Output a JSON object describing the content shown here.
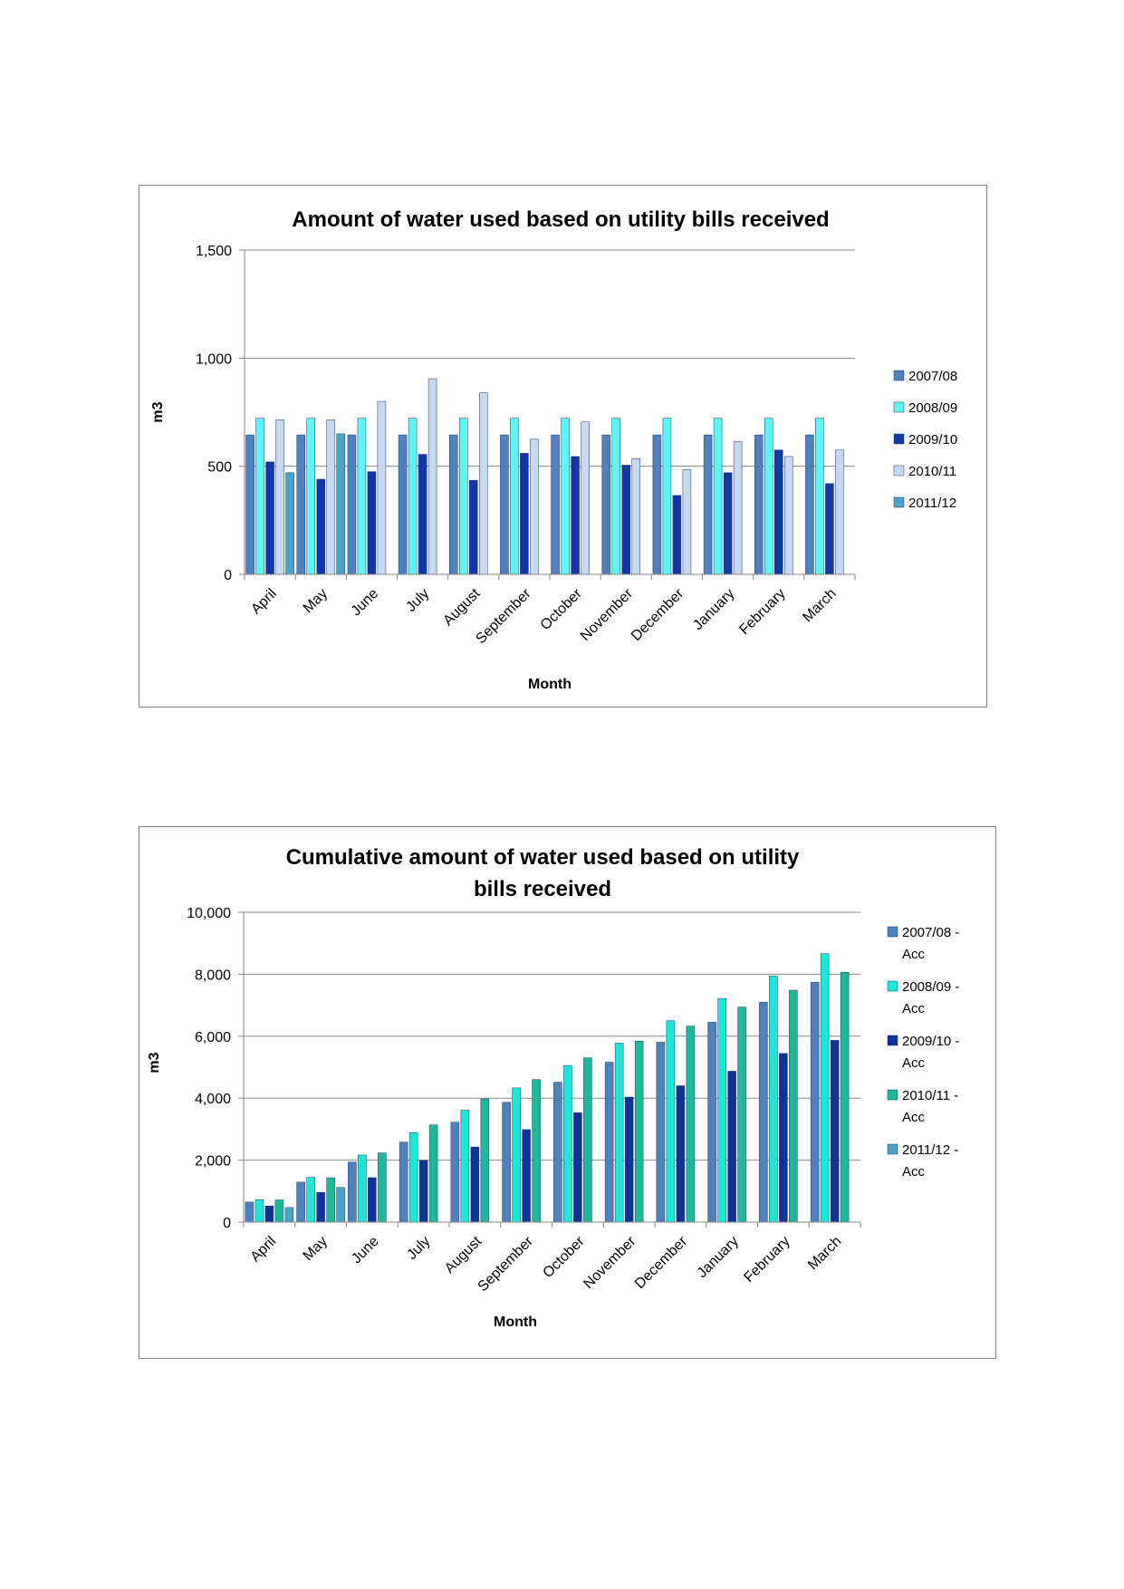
{
  "chart_data": [
    {
      "type": "bar",
      "title": "Amount of water used based on utility bills received",
      "xlabel": "Month",
      "ylabel": "m3",
      "ylim": [
        0,
        1500
      ],
      "yticks": [
        "0",
        "500",
        "1,000",
        "1,500"
      ],
      "grid": "horizontal",
      "legend": "right",
      "categories": [
        "April",
        "May",
        "June",
        "July",
        "August",
        "September",
        "October",
        "November",
        "December",
        "January",
        "February",
        "March"
      ],
      "series": [
        {
          "name": "2007/08",
          "color": "#4f81bd",
          "values": [
            645,
            645,
            645,
            645,
            645,
            645,
            645,
            645,
            645,
            645,
            645,
            645
          ]
        },
        {
          "name": "2008/09",
          "color": "#5df5f5",
          "values": [
            722,
            722,
            722,
            722,
            722,
            722,
            722,
            722,
            722,
            722,
            722,
            722
          ]
        },
        {
          "name": "2009/10",
          "color": "#1036a8",
          "values": [
            520,
            440,
            475,
            555,
            435,
            560,
            545,
            505,
            365,
            470,
            575,
            420
          ]
        },
        {
          "name": "2010/11",
          "color": "#c6d9f1",
          "values": [
            715,
            715,
            800,
            905,
            840,
            625,
            705,
            535,
            485,
            615,
            545,
            575
          ]
        },
        {
          "name": "2011/12",
          "color": "#4aa3c9",
          "values": [
            470,
            650,
            null,
            null,
            null,
            null,
            null,
            null,
            null,
            null,
            null,
            null
          ]
        }
      ]
    },
    {
      "type": "bar",
      "title": "Cumulative amount of water used based on utility bills received",
      "xlabel": "Month",
      "ylabel": "m3",
      "ylim": [
        0,
        10000
      ],
      "yticks": [
        "0",
        "2,000",
        "4,000",
        "6,000",
        "8,000",
        "10,000"
      ],
      "grid": "horizontal",
      "legend": "right",
      "categories": [
        "April",
        "May",
        "June",
        "July",
        "August",
        "September",
        "October",
        "November",
        "December",
        "January",
        "February",
        "March"
      ],
      "series": [
        {
          "name": "2007/08 - Acc",
          "color": "#4f81bd",
          "values": [
            645,
            1290,
            1935,
            2580,
            3225,
            3870,
            4515,
            5160,
            5805,
            6450,
            7095,
            7740
          ]
        },
        {
          "name": "2008/09 - Acc",
          "color": "#1de8d8",
          "values": [
            722,
            1444,
            2166,
            2888,
            3610,
            4332,
            5054,
            5776,
            6498,
            7220,
            7942,
            8664
          ]
        },
        {
          "name": "2009/10 - Acc",
          "color": "#10339a",
          "values": [
            520,
            960,
            1435,
            1990,
            2425,
            2985,
            3530,
            4035,
            4400,
            4870,
            5445,
            5865
          ]
        },
        {
          "name": "2010/11 - Acc",
          "color": "#1eb89a",
          "values": [
            715,
            1430,
            2230,
            3135,
            3975,
            4600,
            5305,
            5840,
            6325,
            6940,
            7485,
            8060
          ]
        },
        {
          "name": "2011/12 - Acc",
          "color": "#4aa3c9",
          "values": [
            470,
            1120,
            null,
            null,
            null,
            null,
            null,
            null,
            null,
            null,
            null,
            null
          ]
        }
      ]
    }
  ]
}
